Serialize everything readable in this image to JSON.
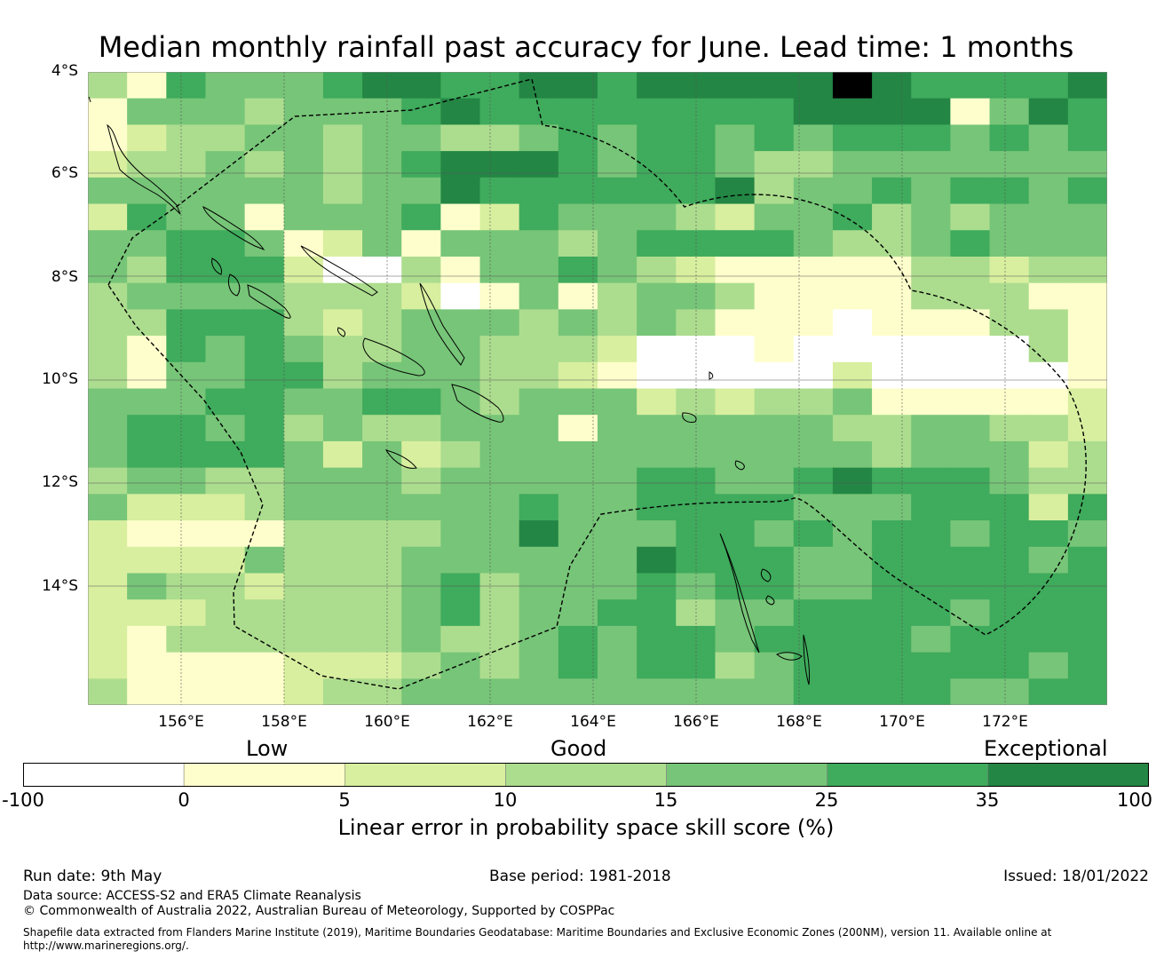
{
  "title": "Median monthly rainfall past accuracy for June. Lead time: 1 months",
  "map": {
    "lat_labels": [
      "4°S",
      "6°S",
      "8°S",
      "10°S",
      "12°S",
      "14°S"
    ],
    "lon_labels": [
      "156°E",
      "158°E",
      "160°E",
      "162°E",
      "164°E",
      "166°E",
      "168°E",
      "170°E",
      "172°E"
    ],
    "colors": [
      "#ffffff",
      "#fefecc",
      "#d8ef9f",
      "#acdd8e",
      "#77c578",
      "#3fab5c",
      "#238644"
    ],
    "grid": [
      "31544456655665666667655556",
      "14443444565555555566661465",
      "12334434433454554545554545",
      "23343434566654554334444444",
      "44444434465555556344545545",
      "25441444512544432445343444",
      "44554124144434555543345444",
      "43555200314454321111133233",
      "34444333201413443111133311",
      "33555323444343431110111331",
      "31545433443332000100000031",
      "31445534443321000002000001",
      "44455445543444232334111112",
      "45545343344414444443344332",
      "45555424234444444444344423",
      "34433444344444554456555433",
      "42223444444544555544455525",
      "21111333344644455454554554",
      "22224333444444655544555545",
      "24332333453444545544555555",
      "22233333453445534455554555",
      "21333333433454554555545555",
      "21111222343454553455555545",
      "31111233444444444455554455"
    ]
  },
  "colorbar": {
    "category_labels": [
      "Low",
      "Good",
      "Exceptional"
    ],
    "ticks": [
      "-100",
      "0",
      "5",
      "10",
      "15",
      "25",
      "35",
      "100"
    ],
    "label": "Linear error in probability space skill score (%)"
  },
  "footer": {
    "run_date": "Run date: 9th May",
    "base_period": "Base period: 1981-2018",
    "issued": "Issued: 18/01/2022",
    "data_source": "Data source: ACCESS-S2 and ERA5 Climate Reanalysis",
    "copyright": "© Commonwealth of Australia 2022, Australian Bureau of Meteorology, Supported by COSPPac",
    "shapefile_line1": "Shapefile data extracted from Flanders Marine Institute (2019), Maritime Boundaries Geodatabase: Maritime Boundaries and Exclusive Economic Zones (200NM), version 11. Available online at",
    "shapefile_line2": "http://www.marineregions.org/."
  }
}
